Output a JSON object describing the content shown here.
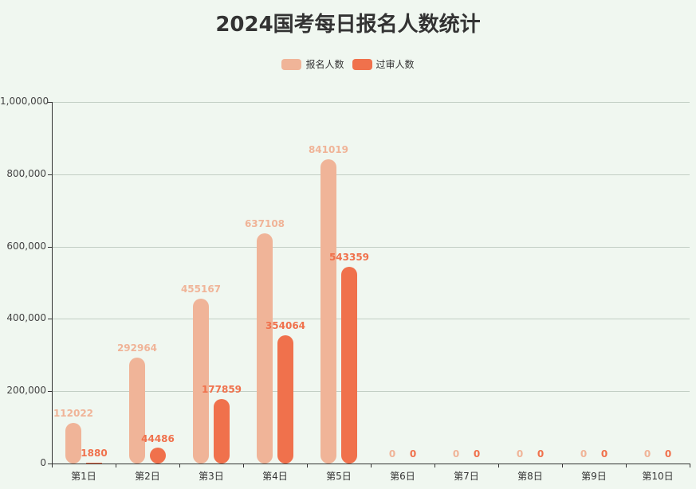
{
  "title": "2024国考每日报名人数统计",
  "legend": [
    {
      "label": "报名人数",
      "color": "#f0b498"
    },
    {
      "label": "过审人数",
      "color": "#f0714c"
    }
  ],
  "y_axis": {
    "ticks": [
      "0",
      "200,000",
      "400,000",
      "600,000",
      "800,000",
      "1,000,000"
    ]
  },
  "chart_data": {
    "type": "bar",
    "title": "2024国考每日报名人数统计",
    "xlabel": "",
    "ylabel": "",
    "ylim": [
      0,
      1000000
    ],
    "grid": true,
    "legend_position": "top",
    "categories": [
      "第1日",
      "第2日",
      "第3日",
      "第4日",
      "第5日",
      "第6日",
      "第7日",
      "第8日",
      "第9日",
      "第10日"
    ],
    "series": [
      {
        "name": "报名人数",
        "color": "#f0b498",
        "values": [
          112022,
          292964,
          455167,
          637108,
          841019,
          0,
          0,
          0,
          0,
          0
        ]
      },
      {
        "name": "过审人数",
        "color": "#f0714c",
        "values": [
          1880,
          44486,
          177859,
          354064,
          543359,
          0,
          0,
          0,
          0,
          0
        ]
      }
    ]
  }
}
